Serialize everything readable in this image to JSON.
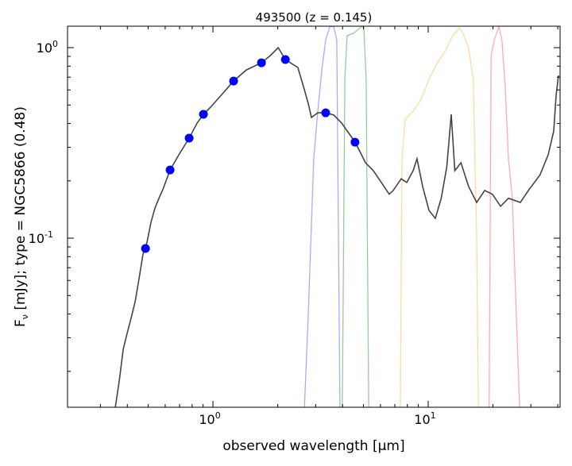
{
  "chart_data": {
    "type": "line",
    "title": "493500 (z = 0.145)",
    "xlabel": "observed wavelength [μm]",
    "ylabel_prefix": "F",
    "ylabel_sub": "ν",
    "ylabel_rest": " [mJy];  type = NGC5866 (0.48)",
    "xscale": "log",
    "yscale": "log",
    "xlim": [
      0.211,
      41
    ],
    "ylim": [
      0.01296,
      1.296
    ],
    "xticks": [
      {
        "value": 1,
        "base": "10",
        "exp": "0"
      },
      {
        "value": 10,
        "base": "10",
        "exp": "1"
      }
    ],
    "yticks": [
      {
        "value": 1,
        "base": "10",
        "exp": "0"
      },
      {
        "value": 0.1,
        "base": "10",
        "exp": "-1"
      }
    ],
    "colors": {
      "model": "#444444",
      "points": "#0000ff",
      "filters": [
        "#aaaaff",
        "#99cc99",
        "#ffd9a0",
        "#ffaaaa"
      ]
    },
    "model": [
      [
        0.352,
        0.013
      ],
      [
        0.367,
        0.0178
      ],
      [
        0.383,
        0.0261
      ],
      [
        0.399,
        0.0316
      ],
      [
        0.417,
        0.0383
      ],
      [
        0.435,
        0.0464
      ],
      [
        0.454,
        0.0619
      ],
      [
        0.473,
        0.0825
      ],
      [
        0.494,
        0.0953
      ],
      [
        0.515,
        0.121
      ],
      [
        0.538,
        0.144
      ],
      [
        0.561,
        0.162
      ],
      [
        0.586,
        0.181
      ],
      [
        0.632,
        0.228
      ],
      [
        0.694,
        0.274
      ],
      [
        0.775,
        0.335
      ],
      [
        0.844,
        0.402
      ],
      [
        0.903,
        0.447
      ],
      [
        0.975,
        0.487
      ],
      [
        1.107,
        0.573
      ],
      [
        1.247,
        0.668
      ],
      [
        1.429,
        0.764
      ],
      [
        1.68,
        0.833
      ],
      [
        1.845,
        0.908
      ],
      [
        2.01,
        1.0
      ],
      [
        2.17,
        0.866
      ],
      [
        2.48,
        0.787
      ],
      [
        2.64,
        0.619
      ],
      [
        2.77,
        0.511
      ],
      [
        2.87,
        0.43
      ],
      [
        3.07,
        0.455
      ],
      [
        3.34,
        0.455
      ],
      [
        3.64,
        0.443
      ],
      [
        3.96,
        0.402
      ],
      [
        4.58,
        0.319
      ],
      [
        5.11,
        0.249
      ],
      [
        5.56,
        0.226
      ],
      [
        6.06,
        0.196
      ],
      [
        6.59,
        0.17
      ],
      [
        6.88,
        0.178
      ],
      [
        7.49,
        0.205
      ],
      [
        7.95,
        0.196
      ],
      [
        8.51,
        0.226
      ],
      [
        8.87,
        0.261
      ],
      [
        9.42,
        0.187
      ],
      [
        10.09,
        0.14
      ],
      [
        10.8,
        0.127
      ],
      [
        11.5,
        0.162
      ],
      [
        12.2,
        0.237
      ],
      [
        12.8,
        0.447
      ],
      [
        13.3,
        0.226
      ],
      [
        14.2,
        0.249
      ],
      [
        15.4,
        0.187
      ],
      [
        16.8,
        0.154
      ],
      [
        18.3,
        0.178
      ],
      [
        19.9,
        0.17
      ],
      [
        21.7,
        0.147
      ],
      [
        23.6,
        0.162
      ],
      [
        26.8,
        0.154
      ],
      [
        29.2,
        0.178
      ],
      [
        33.1,
        0.215
      ],
      [
        36.1,
        0.274
      ],
      [
        38.3,
        0.365
      ],
      [
        39.3,
        0.562
      ],
      [
        40.3,
        0.715
      ]
    ],
    "photometry": [
      [
        0.486,
        0.0883
      ],
      [
        0.632,
        0.228
      ],
      [
        0.775,
        0.335
      ],
      [
        0.903,
        0.447
      ],
      [
        1.247,
        0.668
      ],
      [
        1.68,
        0.833
      ],
      [
        2.17,
        0.866
      ],
      [
        3.34,
        0.455
      ],
      [
        4.57,
        0.319
      ]
    ],
    "filters": [
      [
        [
          2.66,
          0.013
        ],
        [
          2.77,
          0.0383
        ],
        [
          2.94,
          0.261
        ],
        [
          3.07,
          0.464
        ],
        [
          3.2,
          0.75
        ],
        [
          3.34,
          1.1
        ],
        [
          3.49,
          1.29
        ],
        [
          3.64,
          1.29
        ],
        [
          3.76,
          1.1
        ],
        [
          3.89,
          0.013
        ]
      ],
      [
        [
          3.99,
          0.013
        ],
        [
          4.1,
          0.681
        ],
        [
          4.2,
          1.155
        ],
        [
          4.5,
          1.19
        ],
        [
          4.69,
          1.235
        ],
        [
          4.9,
          1.29
        ],
        [
          5.02,
          1.29
        ],
        [
          5.15,
          0.681
        ],
        [
          5.29,
          0.013
        ]
      ],
      [
        [
          7.43,
          0.013
        ],
        [
          7.55,
          0.261
        ],
        [
          7.82,
          0.422
        ],
        [
          8.15,
          0.443
        ],
        [
          8.51,
          0.464
        ],
        [
          9.27,
          0.536
        ],
        [
          10.09,
          0.681
        ],
        [
          10.98,
          0.825
        ],
        [
          11.95,
          0.953
        ],
        [
          13.0,
          1.155
        ],
        [
          13.9,
          1.27
        ],
        [
          14.4,
          1.21
        ],
        [
          15.4,
          1.0
        ],
        [
          16.2,
          0.681
        ],
        [
          16.8,
          0.1
        ],
        [
          17.1,
          0.013
        ]
      ],
      [
        [
          19.2,
          0.013
        ],
        [
          19.6,
          0.908
        ],
        [
          20.3,
          1.1
        ],
        [
          20.9,
          1.21
        ],
        [
          21.3,
          1.29
        ],
        [
          22.0,
          1.1
        ],
        [
          22.8,
          0.619
        ],
        [
          23.6,
          0.261
        ],
        [
          24.6,
          0.162
        ],
        [
          25.7,
          0.0383
        ],
        [
          26.6,
          0.013
        ]
      ]
    ]
  }
}
